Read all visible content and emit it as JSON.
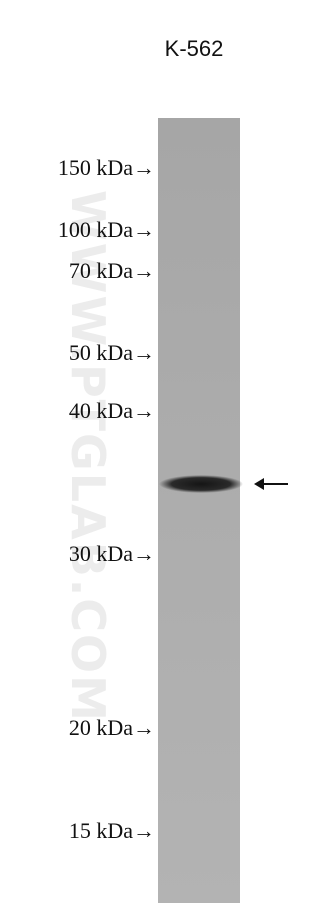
{
  "lane_label": "K-562",
  "markers": [
    "150 kDa→",
    "100 kDa→",
    "70 kDa→",
    "50 kDa→",
    "40 kDa→",
    "30 kDa→",
    "20 kDa→",
    "15 kDa→"
  ],
  "watermark": "WWW.PTGLAB.COM"
}
